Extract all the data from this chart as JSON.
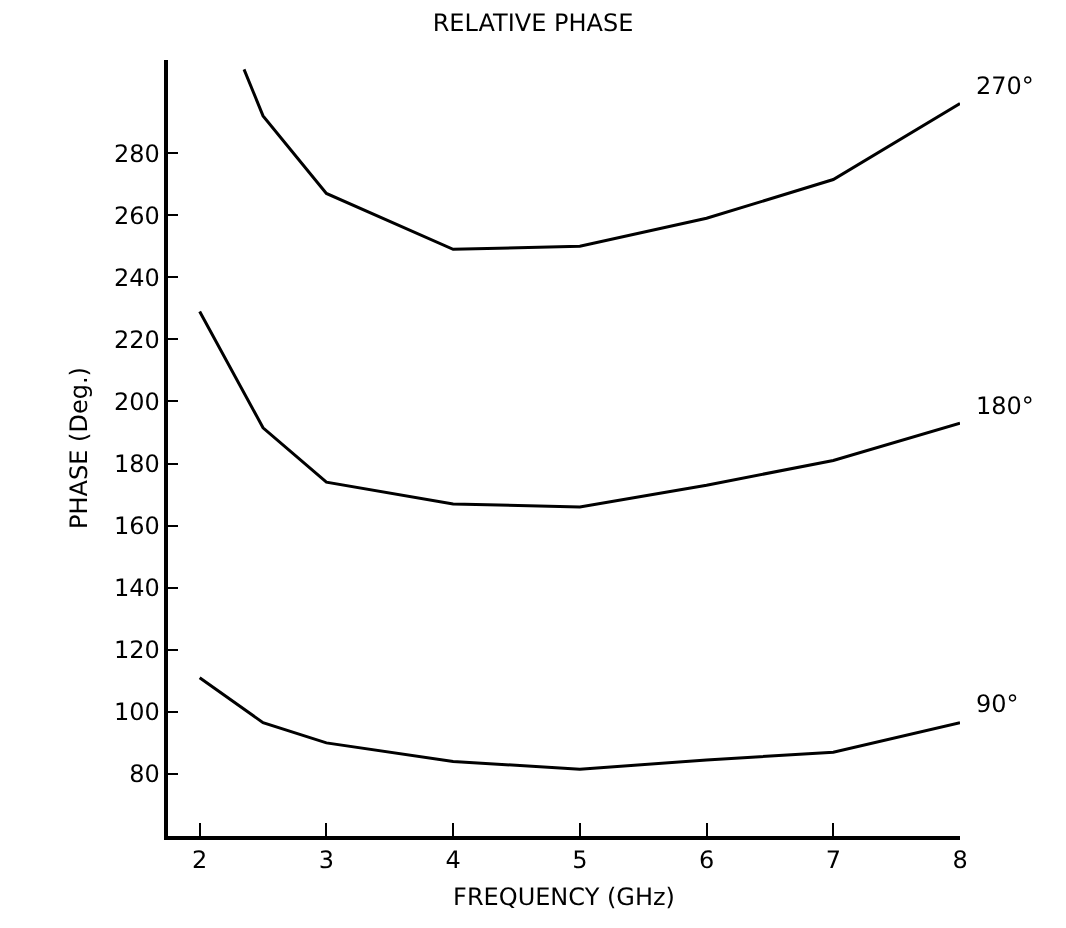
{
  "chart_data": {
    "type": "line",
    "title": "RELATIVE PHASE",
    "xlabel": "FREQUENCY (GHz)",
    "ylabel": "PHASE (Deg.)",
    "xlim": [
      1.75,
      8
    ],
    "xticks": [
      2,
      3,
      4,
      5,
      6,
      7,
      8
    ],
    "ylim": [
      60,
      310
    ],
    "yticks": [
      80,
      100,
      120,
      140,
      160,
      180,
      200,
      220,
      240,
      260,
      280
    ],
    "grid": false,
    "legend": false,
    "marker": "none",
    "line_style": "solid",
    "series": [
      {
        "name": "270°",
        "color": "#000000",
        "x": [
          2.35,
          2.5,
          3,
          4,
          5,
          6,
          7,
          8
        ],
        "values": [
          307,
          292,
          267,
          249,
          250,
          259,
          271.5,
          296
        ]
      },
      {
        "name": "180°",
        "color": "#000000",
        "x": [
          2,
          2.5,
          3,
          4,
          5,
          6,
          7,
          8
        ],
        "values": [
          229,
          191.5,
          174,
          167,
          166,
          173,
          181,
          193
        ]
      },
      {
        "name": "90°",
        "color": "#000000",
        "x": [
          2,
          2.5,
          3,
          4,
          5,
          6,
          7,
          8
        ],
        "values": [
          111,
          96.5,
          90,
          84,
          81.5,
          84.5,
          87,
          96.5
        ]
      }
    ]
  }
}
